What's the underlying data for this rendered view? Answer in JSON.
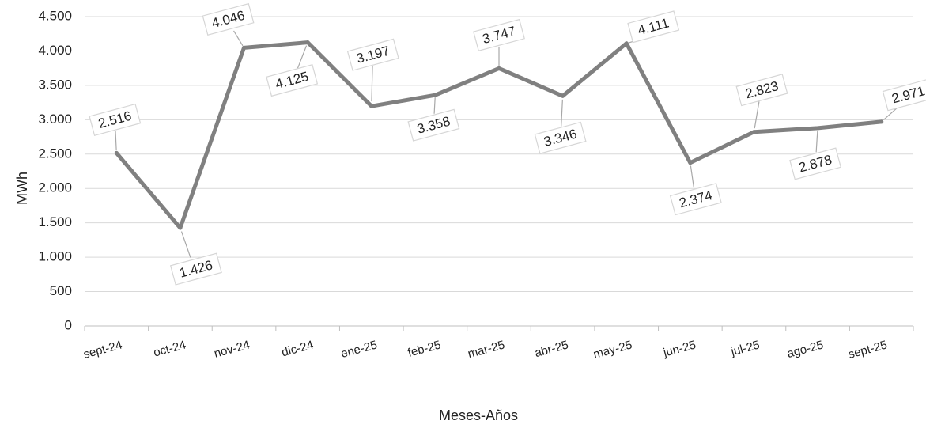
{
  "chart_data": {
    "type": "line",
    "title": "",
    "xlabel": "Meses-Años",
    "ylabel": "MWh",
    "ylim": [
      0,
      4500
    ],
    "yticks": [
      0,
      500,
      1000,
      1500,
      2000,
      2500,
      3000,
      3500,
      4000,
      4500
    ],
    "ytick_labels": [
      "0",
      "500",
      "1.000",
      "1.500",
      "2.000",
      "2.500",
      "3.000",
      "3.500",
      "4.000",
      "4.500"
    ],
    "grid": true,
    "legend": "none",
    "categories": [
      "sept-24",
      "oct-24",
      "nov-24",
      "dic-24",
      "ene-25",
      "feb-25",
      "mar-25",
      "abr-25",
      "may-25",
      "jun-25",
      "jul-25",
      "ago-25",
      "sept-25"
    ],
    "series": [
      {
        "values": [
          2516,
          1426,
          4046,
          4125,
          3197,
          3358,
          3747,
          3346,
          4111,
          2374,
          2823,
          2878,
          2971
        ],
        "labels": [
          "2.516",
          "1.426",
          "4.046",
          "4.125",
          "3.197",
          "3.358",
          "3.747",
          "3.346",
          "4.111",
          "2.374",
          "2.823",
          "2.878",
          "2.971"
        ],
        "color": "#808080"
      }
    ]
  }
}
